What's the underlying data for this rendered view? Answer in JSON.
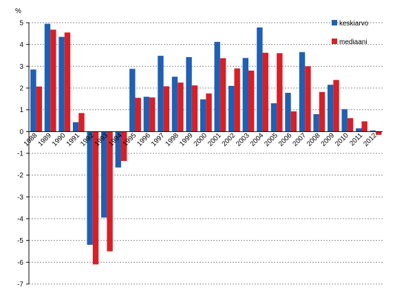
{
  "chart_data": {
    "type": "bar",
    "unit_label": "%",
    "categories": [
      "1988",
      "1989",
      "1990",
      "1991",
      "1992",
      "1993",
      "1994",
      "1995",
      "1996",
      "1997",
      "1998",
      "1999",
      "2000",
      "2001",
      "2002",
      "2003",
      "2004",
      "2005",
      "2006",
      "2007",
      "2008",
      "2009",
      "2010",
      "2011",
      "2012"
    ],
    "series": [
      {
        "name": "keskiarvo",
        "color": "#1f5fb4",
        "values": [
          2.85,
          4.95,
          4.35,
          0.43,
          -5.2,
          -3.95,
          -1.65,
          2.88,
          1.6,
          3.48,
          2.52,
          3.42,
          1.48,
          4.12,
          2.1,
          3.38,
          4.78,
          1.3,
          1.78,
          3.65,
          0.8,
          2.15,
          1.03,
          0.15,
          0.05
        ]
      },
      {
        "name": "mediaani",
        "color": "#d91f26",
        "values": [
          2.07,
          4.68,
          4.55,
          0.85,
          -6.1,
          -5.5,
          -1.35,
          1.55,
          1.57,
          2.08,
          2.25,
          2.12,
          1.75,
          3.37,
          2.9,
          2.8,
          3.62,
          3.6,
          0.93,
          3.0,
          1.82,
          2.37,
          0.62,
          0.47,
          -0.15
        ]
      }
    ],
    "ylim": [
      -7,
      5
    ],
    "yticks": [
      5,
      4,
      3,
      2,
      1,
      0,
      -1,
      -2,
      -3,
      -4,
      -5,
      -6,
      -7
    ],
    "grid": true,
    "legend_position": "top-right"
  }
}
